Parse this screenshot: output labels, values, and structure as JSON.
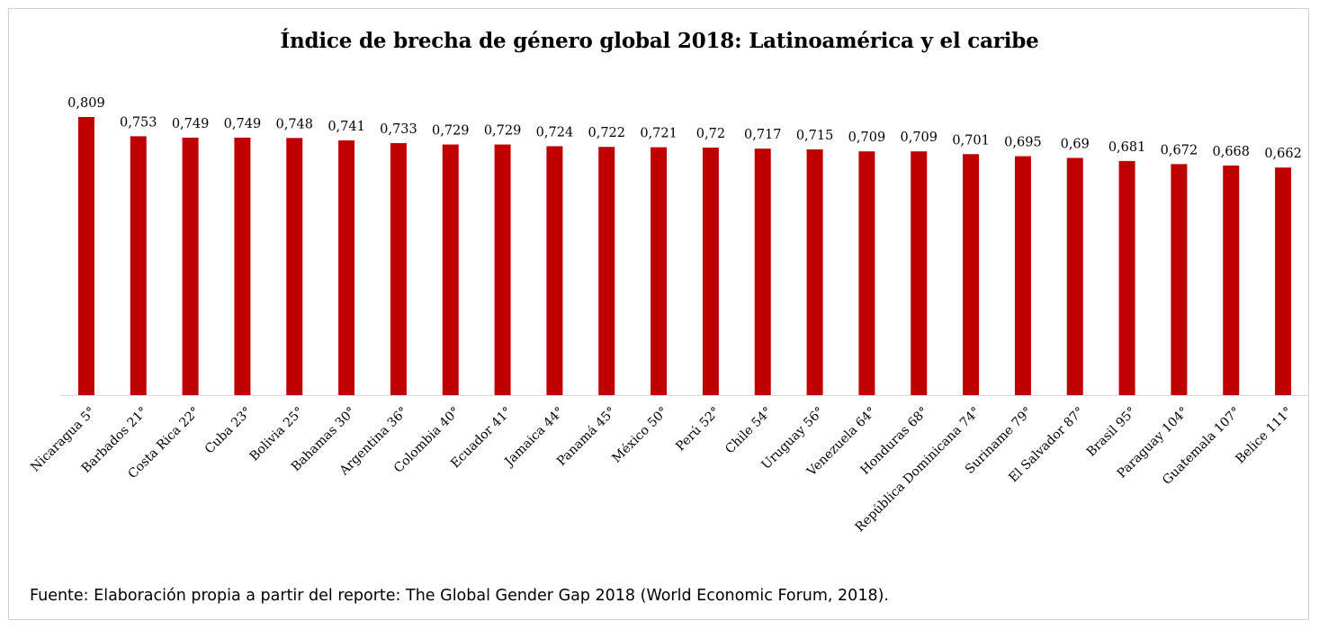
{
  "title": "Índice de brecha de género global 2018: Latinoamérica y el caribe",
  "source": "Fuente: Elaboración propia a partir del reporte: The Global Gender Gap 2018 (World Economic Forum, 2018).",
  "chart_data": {
    "type": "bar",
    "title": "Índice de brecha de género global 2018: Latinoamérica y el caribe",
    "xlabel": "",
    "ylabel": "",
    "ylim": [
      0,
      0.809
    ],
    "grid": false,
    "legend": "none",
    "bar_color": "#C00000",
    "categories": [
      "Nicaragua 5°",
      "Barbados 21°",
      "Costa Rica 22°",
      "Cuba 23°",
      "Bolivia 25°",
      "Bahamas 30°",
      "Argentina 36°",
      "Colombia 40°",
      "Ecuador 41°",
      "Jamaica 44°",
      "Panamá 45°",
      "México 50°",
      "Perú 52°",
      "Chile 54°",
      "Uruguay 56°",
      "Venezuela 64°",
      "Honduras 68°",
      "República Dominicana 74°",
      "Suriname 79°",
      "El Salvador 87°",
      "Brasil 95°",
      "Paraguay 104°",
      "Guatemala 107°",
      "Belice 111°"
    ],
    "values": [
      0.809,
      0.753,
      0.749,
      0.749,
      0.748,
      0.741,
      0.733,
      0.729,
      0.729,
      0.724,
      0.722,
      0.721,
      0.72,
      0.717,
      0.715,
      0.709,
      0.709,
      0.701,
      0.695,
      0.69,
      0.681,
      0.672,
      0.668,
      0.662
    ],
    "value_labels": [
      "0,809",
      "0,753",
      "0,749",
      "0,749",
      "0,748",
      "0,741",
      "0,733",
      "0,729",
      "0,729",
      "0,724",
      "0,722",
      "0,721",
      "0,72",
      "0,717",
      "0,715",
      "0,709",
      "0,709",
      "0,701",
      "0,695",
      "0,69",
      "0,681",
      "0,672",
      "0,668",
      "0,662"
    ]
  }
}
